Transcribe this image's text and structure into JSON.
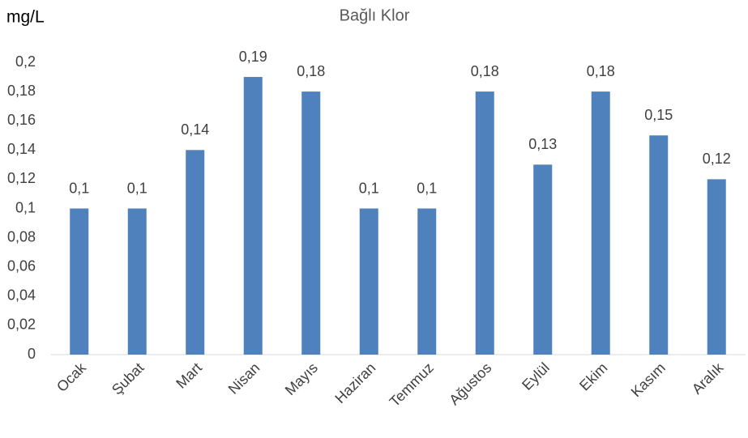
{
  "chart_data": {
    "type": "bar",
    "title": "Bağlı Klor",
    "y_label": "mg/L",
    "categories": [
      "Ocak",
      "Şubat",
      "Mart",
      "Nisan",
      "Mayıs",
      "Haziran",
      "Temmuz",
      "Ağustos",
      "Eylül",
      "Ekim",
      "Kasım",
      "Aralık"
    ],
    "values": [
      0.1,
      0.1,
      0.14,
      0.19,
      0.18,
      0.1,
      0.1,
      0.18,
      0.13,
      0.18,
      0.15,
      0.12
    ],
    "value_labels": [
      "0,1",
      "0,1",
      "0,14",
      "0,19",
      "0,18",
      "0,1",
      "0,1",
      "0,18",
      "0,13",
      "0,18",
      "0,15",
      "0,12"
    ],
    "color": "#4f81bd",
    "ylim": [
      0,
      0.2
    ],
    "yticks": [
      0,
      {
        "value": 0.02,
        "label": "0,02"
      },
      {
        "value": 0.04,
        "label": "0,04"
      },
      {
        "value": 0.06,
        "label": "0,06"
      },
      {
        "value": 0.08,
        "label": "0,08"
      },
      {
        "value": 0.1,
        "label": "0,1"
      },
      {
        "value": 0.12,
        "label": "0,12"
      },
      {
        "value": 0.14,
        "label": "0,14"
      },
      {
        "value": 0.16,
        "label": "0,16"
      },
      {
        "value": 0.18,
        "label": "0,18"
      },
      {
        "value": 0.2,
        "label": "0,2"
      }
    ],
    "grid": false
  }
}
